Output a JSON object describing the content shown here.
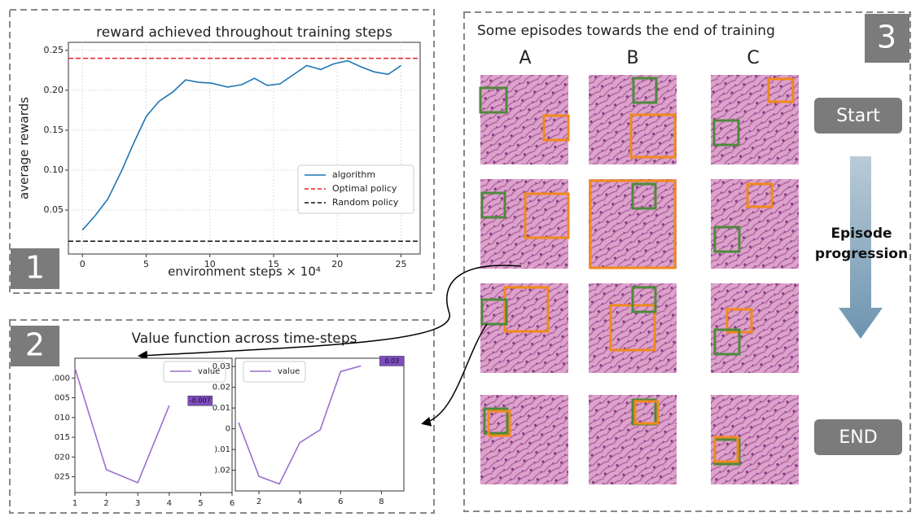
{
  "chart_data": [
    {
      "type": "line",
      "title": "reward achieved throughout training steps",
      "x_label": "environment steps × 10⁴",
      "y_label": "average rewards",
      "x": [
        0,
        1.0,
        2.0,
        3.1,
        4.0,
        5.0,
        6.0,
        7.1,
        8.1,
        9.1,
        10.1,
        11.4,
        12.5,
        13.5,
        14.5,
        15.5,
        16.6,
        17.6,
        18.7,
        19.7,
        20.8,
        21.9,
        22.9,
        24.0,
        25.0
      ],
      "series": [
        {
          "name": "algorithm",
          "color": "#1f77b4",
          "values": [
            0.025,
            0.043,
            0.064,
            0.1,
            0.133,
            0.167,
            0.186,
            0.198,
            0.213,
            0.21,
            0.209,
            0.204,
            0.207,
            0.215,
            0.206,
            0.208,
            0.22,
            0.231,
            0.226,
            0.233,
            0.237,
            0.229,
            0.223,
            0.22,
            0.231
          ]
        }
      ],
      "reference_lines": [
        {
          "name": "Optimal policy",
          "color": "#e8202a",
          "value": 0.24
        },
        {
          "name": "Random policy",
          "color": "#111111",
          "value": 0.011
        }
      ],
      "xlim": [
        -1.1,
        26.5
      ],
      "ylim": [
        -0.005,
        0.26
      ],
      "xticks": [
        0,
        5,
        10,
        15,
        20,
        25
      ],
      "yticks": [
        {
          "value": 0.05,
          "label": "0.05"
        },
        {
          "value": 0.1,
          "label": "0.10"
        },
        {
          "value": 0.15,
          "label": "0.15"
        },
        {
          "value": 0.2,
          "label": "0.20"
        },
        {
          "value": 0.25,
          "label": "0.25"
        }
      ],
      "grid": true,
      "legend": "lower right"
    },
    {
      "type": "line",
      "x": [
        1,
        2,
        3,
        4
      ],
      "series": [
        {
          "name": "value",
          "color": "#9b6fcf",
          "values": [
            0.0025,
            -0.0232,
            -0.0265,
            -0.007
          ],
          "value_labels": [
            null,
            null,
            null,
            "-0.007"
          ]
        }
      ],
      "xlim": [
        1,
        6
      ],
      "ylim": [
        -0.029,
        0.005
      ],
      "xticks": [
        1,
        2,
        3,
        4,
        5,
        6
      ],
      "yticks": [
        {
          "value": 0,
          "label": ".000"
        },
        {
          "value": -0.005,
          "label": "005"
        },
        {
          "value": -0.01,
          "label": "010"
        },
        {
          "value": -0.015,
          "label": "015"
        },
        {
          "value": -0.02,
          "label": "020"
        },
        {
          "value": -0.025,
          "label": "025"
        }
      ],
      "grid": false,
      "legend": "upper right"
    },
    {
      "type": "line",
      "x": [
        1,
        2,
        3,
        4,
        5,
        6,
        7
      ],
      "series": [
        {
          "name": "value",
          "color": "#9b6fcf",
          "values": [
            0.003,
            -0.023,
            -0.0266,
            -0.0067,
            -0.0005,
            0.0276,
            0.0303
          ],
          "value_labels": [
            null,
            null,
            null,
            null,
            null,
            null,
            "0.03"
          ]
        }
      ],
      "xlim": [
        0.84,
        9.1
      ],
      "ylim": [
        -0.03,
        0.034
      ],
      "xticks": [
        2,
        4,
        6,
        8
      ],
      "yticks": [
        {
          "value": 0.03,
          "label": "0.03"
        },
        {
          "value": 0.02,
          "label": "0.02"
        },
        {
          "value": 0.01,
          "label": "0.01"
        },
        {
          "value": 0,
          "label": "0"
        },
        {
          "value": -0.01,
          "label": ").01"
        },
        {
          "value": -0.02,
          "label": ").02"
        }
      ],
      "grid": false,
      "legend": "upper left"
    }
  ],
  "panel_labels": [
    "1",
    "2",
    "3"
  ],
  "value_panel_title": "Value function across time-steps",
  "episodes": {
    "title": "Some episodes towards the end of training",
    "columns": [
      "A",
      "B",
      "C"
    ],
    "start": "Start",
    "end": "END",
    "progression": [
      "Episode",
      "progression"
    ]
  }
}
